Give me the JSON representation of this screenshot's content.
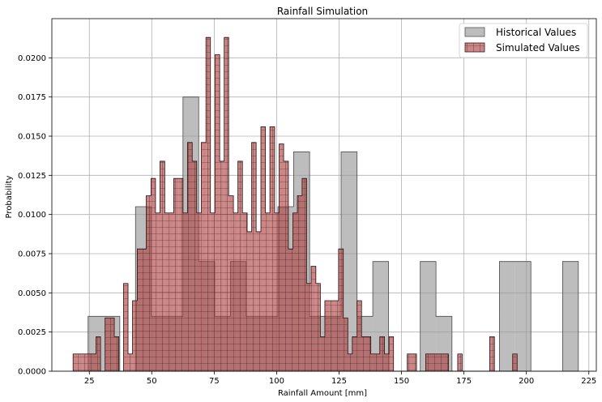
{
  "chart_data": {
    "type": "bar",
    "title": "Rainfall Simulation",
    "xlabel": "Rainfall Amount [mm]",
    "ylabel": "Probability",
    "xlim": [
      10,
      228
    ],
    "ylim": [
      0,
      0.0225
    ],
    "xticks": [
      "25",
      "50",
      "75",
      "100",
      "125",
      "150",
      "175",
      "200",
      "225"
    ],
    "yticks": [
      "0.0000",
      "0.0025",
      "0.0050",
      "0.0075",
      "0.0100",
      "0.0125",
      "0.0150",
      "0.0175",
      "0.0200"
    ],
    "grid": true,
    "legend_position": "top-right",
    "series": [
      {
        "name": "Historical Values",
        "color": "#9a9a9a",
        "edges": [
          24.5,
          30.8,
          37.2,
          43.5,
          49.8,
          56.2,
          62.5,
          68.8,
          75.2,
          81.5,
          87.8,
          94.2,
          100.5,
          106.8,
          113.2,
          119.5,
          125.8,
          132.2,
          138.5,
          144.8,
          151.2,
          157.5,
          163.8,
          170.2,
          176.5,
          182.8,
          189.2,
          195.5,
          201.8,
          208.2,
          214.5,
          220.8
        ],
        "values": [
          0.0035,
          0.0035,
          0.0,
          0.0105,
          0.0035,
          0.0035,
          0.0175,
          0.007,
          0.0035,
          0.007,
          0.0035,
          0.0035,
          0.0105,
          0.014,
          0.0035,
          0.0035,
          0.014,
          0.0035,
          0.007,
          0.0,
          0.0,
          0.007,
          0.0035,
          0.0,
          0.0,
          0.0,
          0.007,
          0.007,
          0.0,
          0.0,
          0.007
        ]
      },
      {
        "name": "Simulated Values",
        "color": "#b04545",
        "edges": [
          18.5,
          20.3,
          22.2,
          24.0,
          25.8,
          27.7,
          29.5,
          31.3,
          33.2,
          35.0,
          36.8,
          38.7,
          40.5,
          42.3,
          44.2,
          46.0,
          47.8,
          49.7,
          51.5,
          53.3,
          55.2,
          57.0,
          58.8,
          60.7,
          62.5,
          64.3,
          66.2,
          68.0,
          69.8,
          71.7,
          73.5,
          75.3,
          77.2,
          79.0,
          80.8,
          82.7,
          84.5,
          86.3,
          88.2,
          90.0,
          91.8,
          93.7,
          95.5,
          97.3,
          99.2,
          101.0,
          102.8,
          104.7,
          106.5,
          108.3,
          110.2,
          112.0,
          113.8,
          115.7,
          117.5,
          119.3,
          121.2,
          123.0,
          124.8,
          126.7,
          128.5,
          130.3,
          132.2,
          134.0,
          135.8,
          137.7,
          139.5,
          141.3,
          143.2,
          145.0,
          146.8,
          148.7,
          150.5,
          152.3,
          154.2,
          156.0,
          157.8,
          159.7,
          161.5,
          163.3,
          165.2,
          167.0,
          168.8,
          170.7,
          172.5,
          174.3,
          176.2,
          178.0,
          179.8,
          181.7,
          183.5,
          185.3,
          187.2,
          189.0,
          190.8,
          192.7,
          194.5,
          196.3,
          198.2,
          200.0
        ],
        "values": [
          0.0011,
          0.0011,
          0.0011,
          0.0011,
          0.0011,
          0.0022,
          0.0,
          0.0034,
          0.0034,
          0.0022,
          0.0,
          0.0056,
          0.0011,
          0.0045,
          0.0078,
          0.0078,
          0.0112,
          0.0123,
          0.0101,
          0.0134,
          0.0101,
          0.0101,
          0.0123,
          0.0123,
          0.0101,
          0.0146,
          0.0134,
          0.0101,
          0.0146,
          0.0213,
          0.0101,
          0.0202,
          0.0134,
          0.0213,
          0.0112,
          0.0101,
          0.0134,
          0.0101,
          0.0089,
          0.0146,
          0.0089,
          0.0156,
          0.0101,
          0.0156,
          0.0101,
          0.0145,
          0.0134,
          0.0078,
          0.0101,
          0.0112,
          0.0123,
          0.0056,
          0.0067,
          0.0056,
          0.0022,
          0.0045,
          0.0045,
          0.0045,
          0.0078,
          0.0034,
          0.0011,
          0.0022,
          0.0045,
          0.0022,
          0.0022,
          0.0011,
          0.0011,
          0.0022,
          0.0011,
          0.0022,
          0.0,
          0.0,
          0.0,
          0.0011,
          0.0011,
          0.0,
          0.0,
          0.0011,
          0.0011,
          0.0011,
          0.0011,
          0.0011,
          0.0,
          0.0,
          0.0011,
          0.0,
          0.0,
          0.0,
          0.0,
          0.0,
          0.0,
          0.0022,
          0.0,
          0.0,
          0.0,
          0.0,
          0.0011,
          0.0,
          0.0
        ]
      }
    ]
  }
}
